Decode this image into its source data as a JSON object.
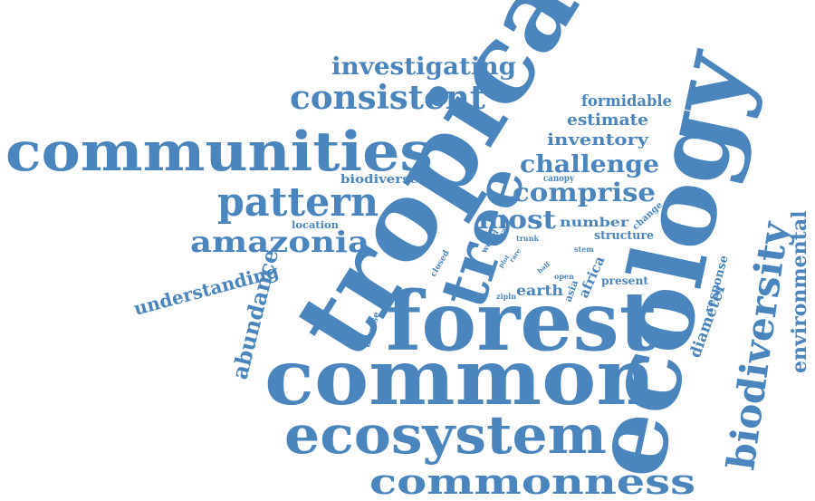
{
  "palette": {
    "word_color": "#4a86bd",
    "background": "#ffffff"
  },
  "words": [
    "tropical",
    "ecology",
    "common",
    "forest",
    "communities",
    "ecosystem",
    "tree",
    "biodiversity",
    "commonness",
    "pattern",
    "consistent",
    "investigating",
    "amazonia",
    "comprise",
    "challenge",
    "most",
    "environmental",
    "abundance",
    "understanding",
    "inventory",
    "estimate",
    "formidable",
    "diameter",
    "number",
    "structure",
    "response",
    "earth",
    "present",
    "africa",
    "biodiverse",
    "location",
    "canopy",
    "change",
    "diverse",
    "area",
    "world",
    "closed",
    "trunk",
    "stem",
    "open",
    "asia",
    "data",
    "rare",
    "plot",
    "half",
    "zipln"
  ]
}
